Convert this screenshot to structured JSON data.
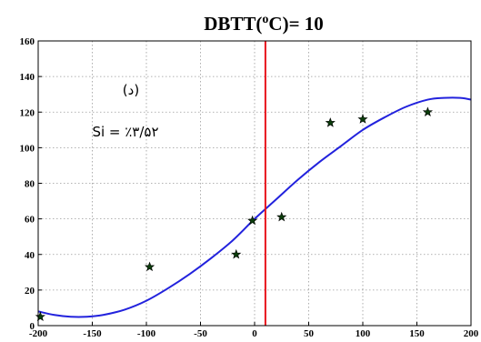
{
  "chart_data": {
    "type": "scatter",
    "title_main": "DBTT(",
    "title_sup": "o",
    "title_rest": "C)= 10",
    "xlim": [
      -200,
      200
    ],
    "ylim": [
      0,
      160
    ],
    "xticks": [
      -200,
      -150,
      -100,
      -50,
      0,
      50,
      100,
      150,
      200
    ],
    "yticks": [
      0,
      20,
      40,
      60,
      80,
      100,
      120,
      140,
      160
    ],
    "grid": true,
    "annotations": [
      "(د)",
      "Si = ٪۳/۵۲"
    ],
    "vertical_line": {
      "x": 10,
      "color": "#e8141c"
    },
    "points": {
      "marker": "star",
      "color": "#0b3d0b",
      "x": [
        -198,
        -97,
        -17,
        -2,
        25,
        70,
        100,
        160
      ],
      "y": [
        5,
        33,
        40,
        59,
        61,
        114,
        116,
        120
      ]
    },
    "fit_curve": {
      "color": "#2222dd",
      "x": [
        -200,
        -185,
        -170,
        -155,
        -140,
        -120,
        -100,
        -80,
        -60,
        -40,
        -20,
        0,
        20,
        40,
        60,
        80,
        100,
        120,
        140,
        160,
        175,
        190,
        200
      ],
      "y": [
        8,
        6,
        5,
        5,
        6,
        9,
        14,
        21,
        29,
        38,
        48,
        60,
        71,
        82,
        92,
        101,
        110,
        117,
        123,
        127,
        128,
        128,
        127
      ]
    }
  }
}
